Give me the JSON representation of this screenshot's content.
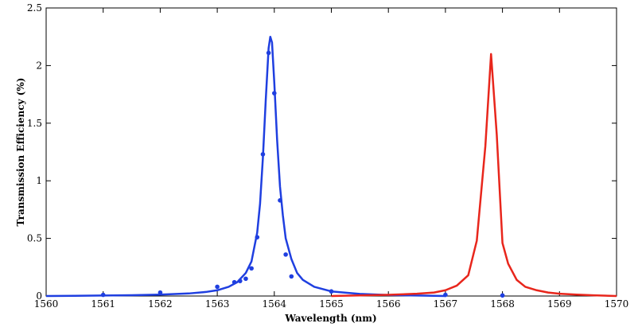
{
  "chart_data": {
    "type": "line",
    "title": "",
    "xlabel": "Wavelength (nm)",
    "ylabel": "Transmission Efficiency (%)",
    "xlim": [
      1560,
      1570
    ],
    "ylim": [
      0,
      2.5
    ],
    "grid": false,
    "legend": "none",
    "x_ticks": [
      "1560",
      "1561",
      "1562",
      "1563",
      "1564",
      "1565",
      "1566",
      "1567",
      "1568",
      "1569",
      "1570"
    ],
    "y_ticks": [
      "0",
      "0.5",
      "1",
      "1.5",
      "2",
      "2.5"
    ],
    "series": [
      {
        "kind": "line",
        "color": "#1f3fe0",
        "x": [
          1560.0,
          1560.5,
          1561.0,
          1561.5,
          1562.0,
          1562.5,
          1562.8,
          1563.0,
          1563.2,
          1563.35,
          1563.5,
          1563.6,
          1563.7,
          1563.75,
          1563.8,
          1563.85,
          1563.9,
          1563.93,
          1563.96,
          1564.0,
          1564.05,
          1564.1,
          1564.15,
          1564.2,
          1564.3,
          1564.4,
          1564.5,
          1564.7,
          1565.0,
          1565.5,
          1566.0,
          1566.5,
          1567.0
        ],
        "y": [
          0.0,
          0.002,
          0.004,
          0.007,
          0.012,
          0.022,
          0.035,
          0.05,
          0.08,
          0.12,
          0.2,
          0.3,
          0.55,
          0.8,
          1.2,
          1.7,
          2.15,
          2.25,
          2.2,
          1.85,
          1.35,
          0.95,
          0.7,
          0.5,
          0.32,
          0.2,
          0.14,
          0.08,
          0.04,
          0.018,
          0.009,
          0.004,
          0.0
        ]
      },
      {
        "kind": "scatter",
        "color": "#1f3fe0",
        "x": [
          1561.0,
          1562.0,
          1563.0,
          1563.3,
          1563.4,
          1563.5,
          1563.6,
          1563.7,
          1563.8,
          1563.9,
          1564.0,
          1564.1,
          1564.2,
          1564.3,
          1565.0,
          1567.0,
          1568.0
        ],
        "y": [
          0.01,
          0.03,
          0.08,
          0.12,
          0.13,
          0.15,
          0.24,
          0.51,
          1.23,
          2.11,
          1.76,
          0.83,
          0.36,
          0.17,
          0.04,
          0.01,
          0.005
        ]
      },
      {
        "kind": "line",
        "color": "#e8261c",
        "x": [
          1565.0,
          1565.5,
          1566.0,
          1566.5,
          1566.8,
          1567.0,
          1567.2,
          1567.4,
          1567.55,
          1567.7,
          1567.8,
          1567.9,
          1568.0,
          1568.1,
          1568.25,
          1568.4,
          1568.6,
          1568.8,
          1569.0,
          1569.3,
          1569.6,
          1570.0
        ],
        "y": [
          0.0,
          0.005,
          0.01,
          0.02,
          0.03,
          0.05,
          0.09,
          0.18,
          0.48,
          1.3,
          2.1,
          1.4,
          0.46,
          0.28,
          0.14,
          0.08,
          0.05,
          0.03,
          0.02,
          0.012,
          0.006,
          0.0
        ]
      }
    ]
  }
}
